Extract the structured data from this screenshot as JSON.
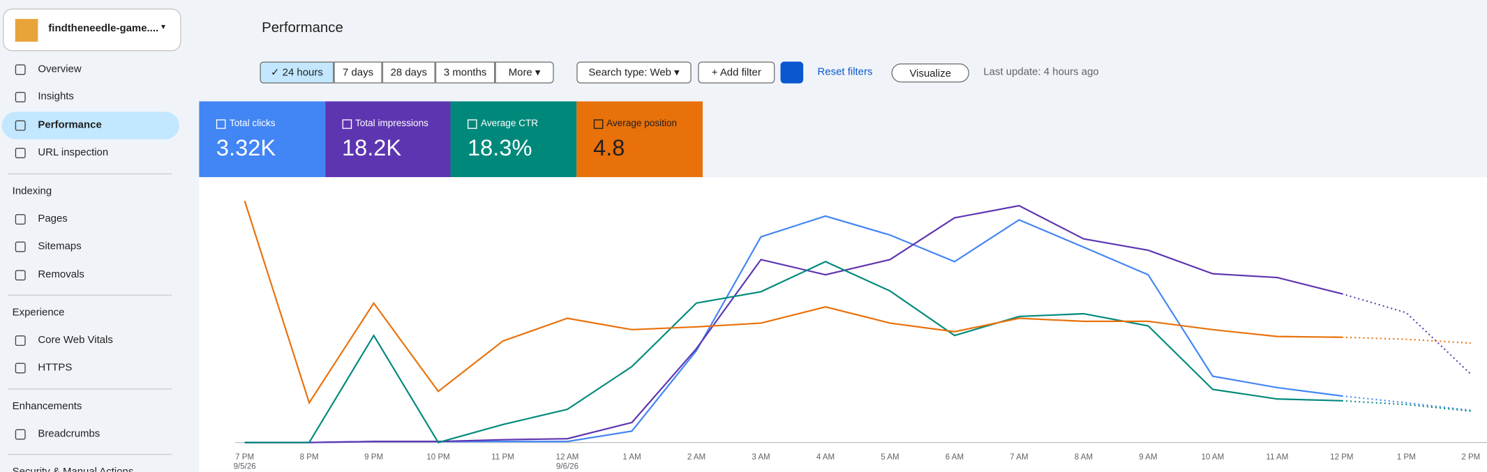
{
  "sidebar": {
    "property": "findtheneedle-game....",
    "items": [
      "Overview",
      "Insights",
      "Performance",
      "URL inspection"
    ],
    "active": 2,
    "sections": [
      {
        "title": "Indexing",
        "items": [
          "Pages",
          "Sitemaps",
          "Removals"
        ]
      },
      {
        "title": "Experience",
        "items": [
          "Core Web Vitals",
          "HTTPS"
        ]
      },
      {
        "title": "Enhancements",
        "items": [
          "Breadcrumbs"
        ]
      },
      {
        "title": "Security & Manual Actions",
        "items": []
      }
    ]
  },
  "header": {
    "title": "Performance"
  },
  "toolbar": {
    "ranges": [
      "24 hours",
      "7 days",
      "28 days",
      "3 months",
      "More"
    ],
    "active": 0,
    "search_type": "Search type: Web",
    "add_filter": "Add filter",
    "reset": "Reset filters",
    "visualize": "Visualize",
    "last_update": "Last update: 4 hours ago"
  },
  "cards": [
    {
      "label": "Total clicks",
      "value": "3.32K",
      "color": "#4285f4"
    },
    {
      "label": "Total impressions",
      "value": "18.2K",
      "color": "#5e35b1"
    },
    {
      "label": "Average CTR",
      "value": "18.3%",
      "color": "#00897b"
    },
    {
      "label": "Average position",
      "value": "4.8",
      "color": "#e8710a"
    }
  ],
  "chart_data": {
    "type": "line",
    "categories": [
      "7 PM",
      "8 PM",
      "9 PM",
      "10 PM",
      "11 PM",
      "12 AM",
      "1 AM",
      "2 AM",
      "3 AM",
      "4 AM",
      "5 AM",
      "6 AM",
      "7 AM",
      "8 AM",
      "9 AM",
      "10 AM",
      "11 AM",
      "12 PM",
      "1 PM",
      "2 PM"
    ],
    "date_labels": [
      {
        "index": 0,
        "label": "9/5/26"
      },
      {
        "index": 5,
        "label": "9/6/26"
      }
    ],
    "ylim": [
      0,
      100
    ],
    "partial_from": 17,
    "series": [
      {
        "name": "Total clicks",
        "color": "#4285f4",
        "values": [
          0,
          0,
          0.4,
          0.4,
          0.4,
          0.4,
          4.5,
          36.3,
          81.3,
          89.5,
          82,
          71.5,
          88,
          77.2,
          66.3,
          26.2,
          21.7,
          18.4,
          15.7,
          12.7
        ]
      },
      {
        "name": "Total impressions",
        "color": "#5e35b1",
        "values": [
          0,
          0,
          0.4,
          0.4,
          1.1,
          1.5,
          7.9,
          37.1,
          72.3,
          66.3,
          72.3,
          88.8,
          93.6,
          80.5,
          76,
          66.7,
          65.2,
          58.8,
          51.3,
          27
        ]
      },
      {
        "name": "Average CTR",
        "color": "#00897b",
        "values": [
          0,
          0,
          42.3,
          0,
          7.1,
          13.1,
          30,
          55.1,
          59.6,
          71.5,
          59.9,
          42.3,
          49.8,
          50.9,
          46.1,
          21,
          17.2,
          16.5,
          15,
          12.4
        ]
      },
      {
        "name": "Average position",
        "color": "#e8710a",
        "values": [
          95.5,
          15.7,
          55.1,
          20.2,
          40.1,
          49.1,
          44.6,
          45.7,
          47.2,
          53.6,
          47.2,
          43.8,
          49.1,
          47.9,
          47.9,
          44.6,
          41.9,
          41.6,
          40.8,
          39.3
        ]
      }
    ]
  }
}
